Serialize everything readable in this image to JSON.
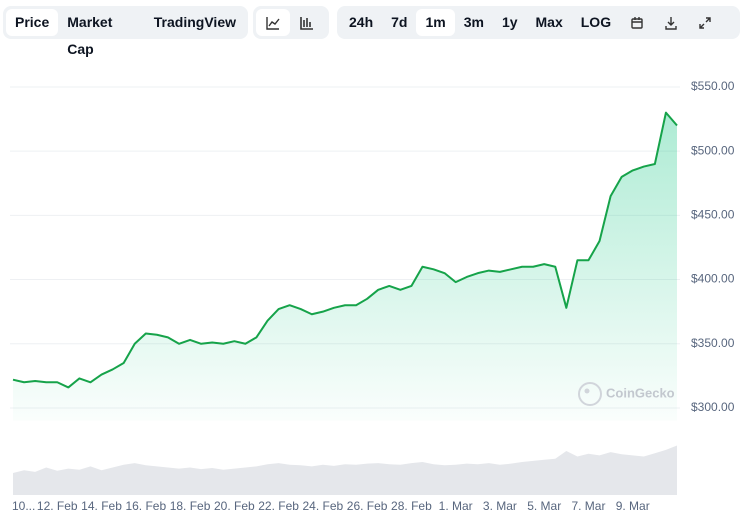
{
  "controls": {
    "tabs": [
      "Price",
      "Market Cap",
      "TradingView"
    ],
    "ranges": [
      "24h",
      "7d",
      "1m",
      "3m",
      "1y",
      "Max",
      "LOG"
    ]
  },
  "chart_data": {
    "type": "line",
    "watermark": "CoinGecko",
    "categories": [
      "10...",
      null,
      null,
      null,
      "12. Feb",
      null,
      null,
      null,
      "14. Feb",
      null,
      null,
      null,
      "16. Feb",
      null,
      null,
      null,
      "18. Feb",
      null,
      null,
      null,
      "20. Feb",
      null,
      null,
      null,
      "22. Feb",
      null,
      null,
      null,
      "24. Feb",
      null,
      null,
      null,
      "26. Feb",
      null,
      null,
      null,
      "28. Feb",
      null,
      null,
      null,
      "1. Mar",
      null,
      null,
      null,
      "3. Mar",
      null,
      null,
      null,
      "5. Mar",
      null,
      null,
      null,
      "7. Mar",
      null,
      null,
      null,
      "9. Mar",
      null,
      null,
      null,
      null
    ],
    "series": [
      {
        "color": "#16a34a",
        "values": [
          322,
          320,
          321,
          320,
          320,
          316,
          323,
          320,
          326,
          330,
          335,
          350,
          358,
          357,
          355,
          350,
          353,
          350,
          351,
          350,
          352,
          350,
          355,
          368,
          377,
          380,
          377,
          373,
          375,
          378,
          380,
          380,
          385,
          392,
          395,
          392,
          395,
          410,
          408,
          405,
          398,
          402,
          405,
          407,
          406,
          408,
          410,
          410,
          412,
          410,
          378,
          415,
          415,
          430,
          465,
          480,
          485,
          488,
          490,
          530,
          520
        ]
      }
    ],
    "volume": {
      "color": "#e5e7eb",
      "ylim": [
        0,
        100
      ],
      "values": [
        40,
        45,
        42,
        50,
        44,
        48,
        46,
        52,
        45,
        50,
        55,
        58,
        54,
        52,
        50,
        48,
        50,
        47,
        49,
        46,
        48,
        50,
        52,
        56,
        58,
        55,
        54,
        52,
        55,
        53,
        56,
        55,
        57,
        58,
        56,
        55,
        58,
        60,
        56,
        54,
        55,
        57,
        56,
        58,
        55,
        57,
        60,
        62,
        64,
        66,
        80,
        70,
        75,
        72,
        78,
        74,
        72,
        70,
        76,
        82,
        90
      ]
    },
    "ylim": [
      290,
      565
    ],
    "yticks": [
      {
        "value": 300,
        "label": "$300.00"
      },
      {
        "value": 350,
        "label": "$350.00"
      },
      {
        "value": 400,
        "label": "$400.00"
      },
      {
        "value": 450,
        "label": "$450.00"
      },
      {
        "value": 500,
        "label": "$500.00"
      },
      {
        "value": 550,
        "label": "$550.00"
      }
    ],
    "grid": true
  }
}
